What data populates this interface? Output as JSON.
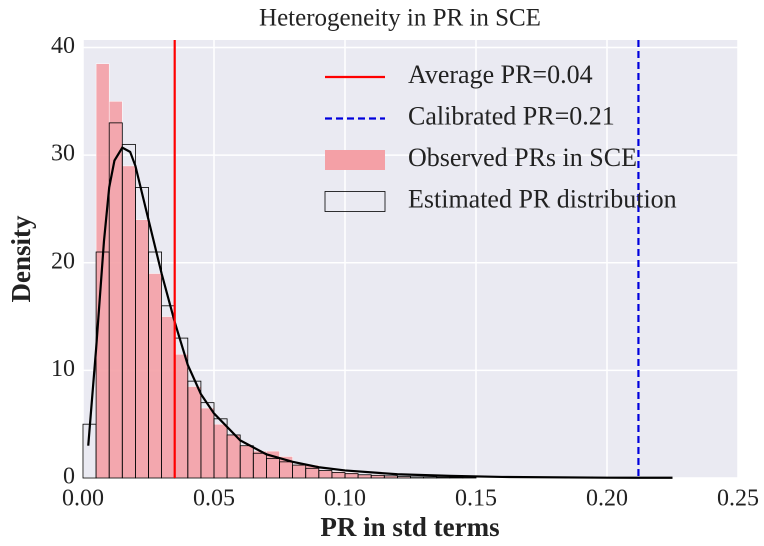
{
  "chart_data": {
    "type": "histogram",
    "title": "Heterogeneity in PR in SCE",
    "xlabel": "PR in std terms",
    "ylabel": "Density",
    "xlim": [
      0,
      0.25
    ],
    "ylim": [
      0,
      40.7
    ],
    "xticks": [
      {
        "value": 0,
        "label": "0.00"
      },
      0.05,
      {
        "value": 0.1,
        "label": "0.10"
      },
      0.15,
      {
        "value": 0.2,
        "label": "0.20"
      },
      0.25
    ],
    "yticks": [
      0,
      10,
      20,
      30,
      40
    ],
    "grid": true,
    "legend": "upper right",
    "series": [
      {
        "type": "vline",
        "name": "Average PR=0.04",
        "x": 0.035,
        "color": "#ff0000",
        "dash": "solid"
      },
      {
        "type": "vline",
        "name": "Calibrated PR=0.21",
        "x": 0.212,
        "color": "#0000dd",
        "dash": "dashed"
      },
      {
        "type": "histogram",
        "name": "Observed PRs in SCE",
        "color": "#f4a0a6",
        "bins": [
          0.005,
          0.01,
          0.015,
          0.02,
          0.025,
          0.03,
          0.035,
          0.04,
          0.045,
          0.05,
          0.055,
          0.06,
          0.065,
          0.07,
          0.075,
          0.08,
          0.085,
          0.09,
          0.095,
          0.1,
          0.105,
          0.11,
          0.115,
          0.12,
          0.125
        ],
        "values": [
          38.5,
          35,
          29,
          24,
          19,
          15,
          11.5,
          8.5,
          6.5,
          5,
          4,
          3,
          2.5,
          2.5,
          2,
          1.2,
          1.2,
          0.7,
          0.6,
          0.5,
          0.3,
          0.3,
          0.2,
          0.1
        ]
      },
      {
        "type": "histogram",
        "name": "Estimated PR distribution",
        "color": "#000000",
        "outline": true,
        "bins": [
          0,
          0.005,
          0.01,
          0.015,
          0.02,
          0.025,
          0.03,
          0.035,
          0.04,
          0.045,
          0.05,
          0.055,
          0.06,
          0.065,
          0.07,
          0.075,
          0.08,
          0.085,
          0.09,
          0.095,
          0.1,
          0.105,
          0.11,
          0.115,
          0.12,
          0.125,
          0.13,
          0.135,
          0.14,
          0.145,
          0.15
        ],
        "values": [
          5,
          21,
          33,
          31,
          27,
          21,
          16,
          13,
          9,
          7,
          5.5,
          4,
          3,
          2.3,
          1.8,
          1.5,
          1.2,
          0.9,
          0.7,
          0.5,
          0.4,
          0.3,
          0.25,
          0.2,
          0.15,
          0.1,
          0.1,
          0.08,
          0.06,
          0.05
        ]
      },
      {
        "type": "line",
        "color": "#000000",
        "x": [
          0.002,
          0.005,
          0.008,
          0.01,
          0.012,
          0.015,
          0.018,
          0.02,
          0.025,
          0.03,
          0.035,
          0.04,
          0.045,
          0.05,
          0.06,
          0.07,
          0.08,
          0.09,
          0.1,
          0.12,
          0.14,
          0.16,
          0.2,
          0.225
        ],
        "values": [
          3,
          12,
          22,
          27,
          29.5,
          30.7,
          30.3,
          29,
          24,
          19,
          14.5,
          10.5,
          7.8,
          6,
          3.5,
          2.2,
          1.5,
          1,
          0.7,
          0.35,
          0.2,
          0.1,
          0.03,
          0.02
        ]
      }
    ]
  }
}
